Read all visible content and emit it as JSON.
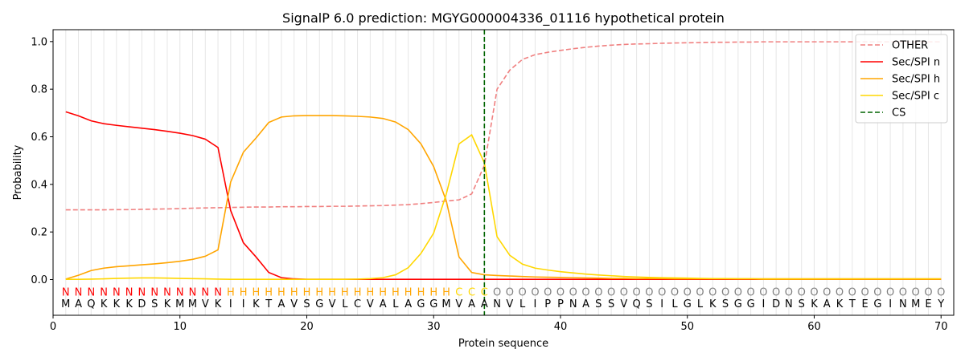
{
  "chart_data": {
    "type": "line",
    "title": "SignalP 6.0 prediction: MGYG000004336_01116 hypothetical protein",
    "xlabel": "Protein sequence",
    "ylabel": "Probability",
    "xlim": [
      0,
      71
    ],
    "ylim": [
      -0.15,
      1.05
    ],
    "x_ticks": [
      0,
      10,
      20,
      30,
      40,
      50,
      60,
      70
    ],
    "y_ticks": [
      0.0,
      0.2,
      0.4,
      0.6,
      0.8,
      1.0
    ],
    "x_tick_labels": [
      "0",
      "10",
      "20",
      "30",
      "40",
      "50",
      "60",
      "70"
    ],
    "y_tick_labels": [
      "0.0",
      "0.2",
      "0.4",
      "0.6",
      "0.8",
      "1.0"
    ],
    "legend_position": "top-right",
    "grid": "vertical lines at every residue",
    "sequence": [
      "M",
      "A",
      "Q",
      "K",
      "K",
      "K",
      "D",
      "S",
      "K",
      "M",
      "M",
      "V",
      "K",
      "I",
      "I",
      "K",
      "T",
      "A",
      "V",
      "S",
      "G",
      "V",
      "L",
      "C",
      "V",
      "A",
      "L",
      "A",
      "G",
      "G",
      "M",
      "V",
      "A",
      "A",
      "N",
      "V",
      "L",
      "I",
      "P",
      "P",
      "N",
      "A",
      "S",
      "S",
      "V",
      "Q",
      "S",
      "I",
      "L",
      "G",
      "L",
      "K",
      "S",
      "G",
      "G",
      "I",
      "D",
      "N",
      "S",
      "K",
      "A",
      "K",
      "T",
      "E",
      "G",
      "I",
      "N",
      "M",
      "E",
      "Y"
    ],
    "labels": [
      "N",
      "N",
      "N",
      "N",
      "N",
      "N",
      "N",
      "N",
      "N",
      "N",
      "N",
      "N",
      "N",
      "H",
      "H",
      "H",
      "H",
      "H",
      "H",
      "H",
      "H",
      "H",
      "H",
      "H",
      "H",
      "H",
      "H",
      "H",
      "H",
      "H",
      "H",
      "C",
      "C",
      "C",
      "O",
      "O",
      "O",
      "O",
      "O",
      "O",
      "O",
      "O",
      "O",
      "O",
      "O",
      "O",
      "O",
      "O",
      "O",
      "O",
      "O",
      "O",
      "O",
      "O",
      "O",
      "O",
      "O",
      "O",
      "O",
      "O",
      "O",
      "O",
      "O",
      "O",
      "O",
      "O",
      "O",
      "O",
      "O",
      "O"
    ],
    "label_colors": {
      "N": "#ff0000",
      "H": "#ffa500",
      "C": "#ffd700",
      "O": "#808080"
    },
    "cleavage_site": 34,
    "series": [
      {
        "name": "OTHER",
        "color": "#f08080",
        "dash": "dashed",
        "values": [
          0.293,
          0.293,
          0.293,
          0.293,
          0.294,
          0.294,
          0.295,
          0.296,
          0.297,
          0.298,
          0.3,
          0.301,
          0.302,
          0.303,
          0.304,
          0.305,
          0.305,
          0.306,
          0.306,
          0.307,
          0.307,
          0.308,
          0.308,
          0.309,
          0.31,
          0.311,
          0.313,
          0.315,
          0.319,
          0.324,
          0.33,
          0.335,
          0.36,
          0.48,
          0.8,
          0.88,
          0.925,
          0.945,
          0.955,
          0.963,
          0.97,
          0.976,
          0.981,
          0.985,
          0.988,
          0.99,
          0.991,
          0.993,
          0.994,
          0.995,
          0.996,
          0.997,
          0.997,
          0.998,
          0.998,
          0.999,
          0.999,
          0.999,
          0.999,
          0.999,
          0.999,
          0.999,
          0.999,
          0.999,
          0.999,
          0.999,
          0.999,
          0.999,
          0.999,
          0.999
        ]
      },
      {
        "name": "Sec/SPI n",
        "color": "#ff0000",
        "dash": "solid",
        "values": [
          0.705,
          0.688,
          0.667,
          0.655,
          0.648,
          0.642,
          0.636,
          0.63,
          0.623,
          0.615,
          0.605,
          0.59,
          0.555,
          0.29,
          0.155,
          0.095,
          0.03,
          0.008,
          0.003,
          0.001,
          0.001,
          0.001,
          0.001,
          0.001,
          0.001,
          0.001,
          0.001,
          0.001,
          0.001,
          0.001,
          0.001,
          0.001,
          0.001,
          0.001,
          0.001,
          0.001,
          0.001,
          0.001,
          0.001,
          0.001,
          0.001,
          0.001,
          0.001,
          0.001,
          0.001,
          0.001,
          0.001,
          0.001,
          0.001,
          0.001,
          0.001,
          0.001,
          0.001,
          0.001,
          0.001,
          0.001,
          0.001,
          0.001,
          0.001,
          0.001,
          0.001,
          0.001,
          0.001,
          0.001,
          0.001,
          0.001,
          0.001,
          0.001,
          0.001,
          0.001
        ]
      },
      {
        "name": "Sec/SPI h",
        "color": "#ffa500",
        "dash": "solid",
        "values": [
          0.002,
          0.018,
          0.038,
          0.048,
          0.054,
          0.058,
          0.062,
          0.066,
          0.071,
          0.077,
          0.085,
          0.098,
          0.125,
          0.41,
          0.535,
          0.595,
          0.66,
          0.683,
          0.688,
          0.689,
          0.689,
          0.689,
          0.688,
          0.686,
          0.683,
          0.677,
          0.662,
          0.63,
          0.57,
          0.475,
          0.33,
          0.095,
          0.03,
          0.02,
          0.017,
          0.015,
          0.013,
          0.011,
          0.01,
          0.009,
          0.008,
          0.007,
          0.006,
          0.005,
          0.005,
          0.004,
          0.004,
          0.004,
          0.003,
          0.003,
          0.003,
          0.003,
          0.003,
          0.003,
          0.003,
          0.003,
          0.003,
          0.003,
          0.003,
          0.003,
          0.003,
          0.003,
          0.003,
          0.003,
          0.003,
          0.003,
          0.003,
          0.003,
          0.003,
          0.003
        ]
      },
      {
        "name": "Sec/SPI c",
        "color": "#ffd700",
        "dash": "solid",
        "values": [
          0.001,
          0.001,
          0.002,
          0.003,
          0.005,
          0.006,
          0.007,
          0.007,
          0.006,
          0.005,
          0.004,
          0.003,
          0.002,
          0.001,
          0.001,
          0.001,
          0.001,
          0.001,
          0.001,
          0.001,
          0.001,
          0.001,
          0.001,
          0.002,
          0.004,
          0.008,
          0.02,
          0.05,
          0.11,
          0.195,
          0.36,
          0.57,
          0.608,
          0.49,
          0.18,
          0.102,
          0.065,
          0.048,
          0.04,
          0.033,
          0.028,
          0.023,
          0.019,
          0.016,
          0.013,
          0.011,
          0.009,
          0.008,
          0.007,
          0.006,
          0.005,
          0.004,
          0.004,
          0.003,
          0.003,
          0.002,
          0.002,
          0.002,
          0.002,
          0.002,
          0.002,
          0.002,
          0.002,
          0.002,
          0.002,
          0.002,
          0.002,
          0.002,
          0.002,
          0.002
        ]
      },
      {
        "name": "CS",
        "color": "#006400",
        "dash": "dashed",
        "x": 34
      }
    ]
  }
}
